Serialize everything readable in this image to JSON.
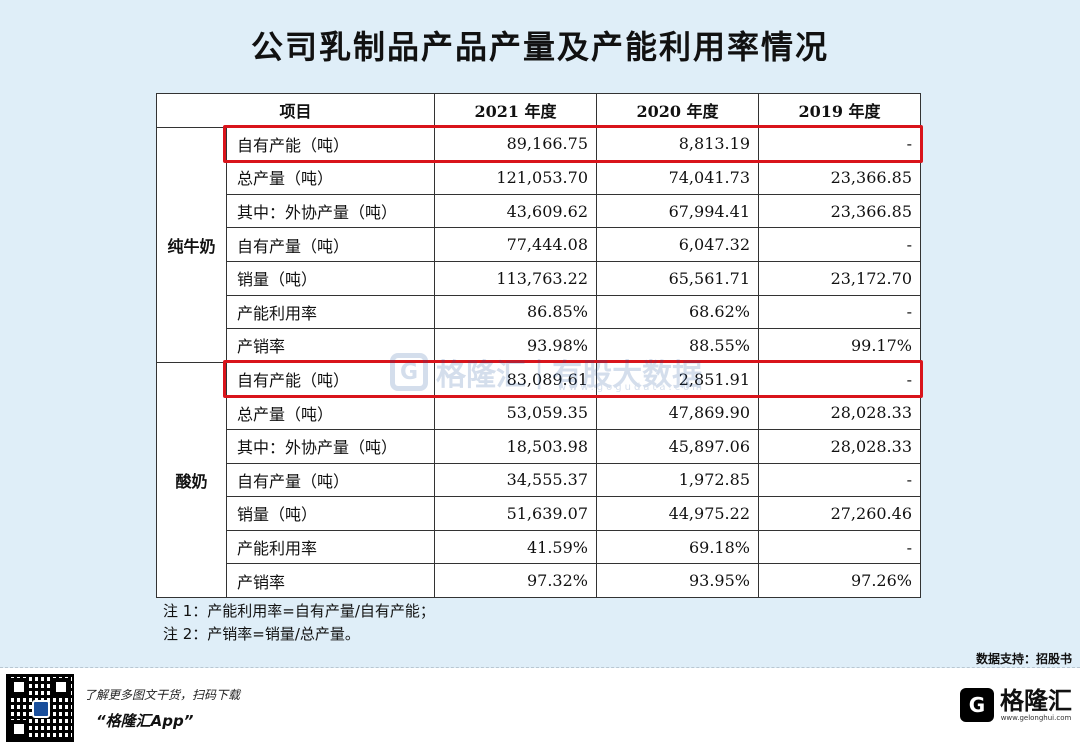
{
  "title": "公司乳制品产品产量及产能利用率情况",
  "table": {
    "headers": [
      "项目",
      "2021 年度",
      "2020 年度",
      "2019 年度"
    ],
    "groups": [
      {
        "name": "纯牛奶",
        "rows": [
          {
            "item": "自有产能（吨）",
            "v2021": "89,166.75",
            "v2020": "8,813.19",
            "v2019": "-",
            "highlighted": true
          },
          {
            "item": "总产量（吨）",
            "v2021": "121,053.70",
            "v2020": "74,041.73",
            "v2019": "23,366.85"
          },
          {
            "item": "其中：外协产量（吨）",
            "v2021": "43,609.62",
            "v2020": "67,994.41",
            "v2019": "23,366.85"
          },
          {
            "item": "自有产量（吨）",
            "v2021": "77,444.08",
            "v2020": "6,047.32",
            "v2019": "-"
          },
          {
            "item": "销量（吨）",
            "v2021": "113,763.22",
            "v2020": "65,561.71",
            "v2019": "23,172.70"
          },
          {
            "item": "产能利用率",
            "v2021": "86.85%",
            "v2020": "68.62%",
            "v2019": "-"
          },
          {
            "item": "产销率",
            "v2021": "93.98%",
            "v2020": "88.55%",
            "v2019": "99.17%"
          }
        ]
      },
      {
        "name": "酸奶",
        "rows": [
          {
            "item": "自有产能（吨）",
            "v2021": "83,089.61",
            "v2020": "2,851.91",
            "v2019": "-",
            "highlighted": true
          },
          {
            "item": "总产量（吨）",
            "v2021": "53,059.35",
            "v2020": "47,869.90",
            "v2019": "28,028.33"
          },
          {
            "item": "其中：外协产量（吨）",
            "v2021": "18,503.98",
            "v2020": "45,897.06",
            "v2019": "28,028.33"
          },
          {
            "item": "自有产量（吨）",
            "v2021": "34,555.37",
            "v2020": "1,972.85",
            "v2019": "-"
          },
          {
            "item": "销量（吨）",
            "v2021": "51,639.07",
            "v2020": "44,975.22",
            "v2019": "27,260.46"
          },
          {
            "item": "产能利用率",
            "v2021": "41.59%",
            "v2020": "69.18%",
            "v2019": "-"
          },
          {
            "item": "产销率",
            "v2021": "97.32%",
            "v2020": "93.95%",
            "v2019": "97.26%"
          }
        ]
      }
    ]
  },
  "notes": {
    "note1": "注 1：产能利用率=自有产量/自有产能；",
    "note2": "注 2：产销率=销量/总产量。"
  },
  "watermark": {
    "logo_letter": "G",
    "brand": "格隆汇",
    "separator": "|",
    "slogan": "有股大数据",
    "url": "www.gogudata.com"
  },
  "source": "数据支持：招股书",
  "footer": {
    "promo": "了解更多图文干货，扫码下载",
    "app_name": "“格隆汇App”",
    "brand_logo_letter": "G",
    "brand_name": "格隆汇",
    "brand_url": "www.gelonghui.com",
    "qr_icon": "qr-code-icon"
  },
  "colors": {
    "background": "#dfeef8",
    "highlight": "#d9141b",
    "watermark": "#1a4f9c"
  }
}
